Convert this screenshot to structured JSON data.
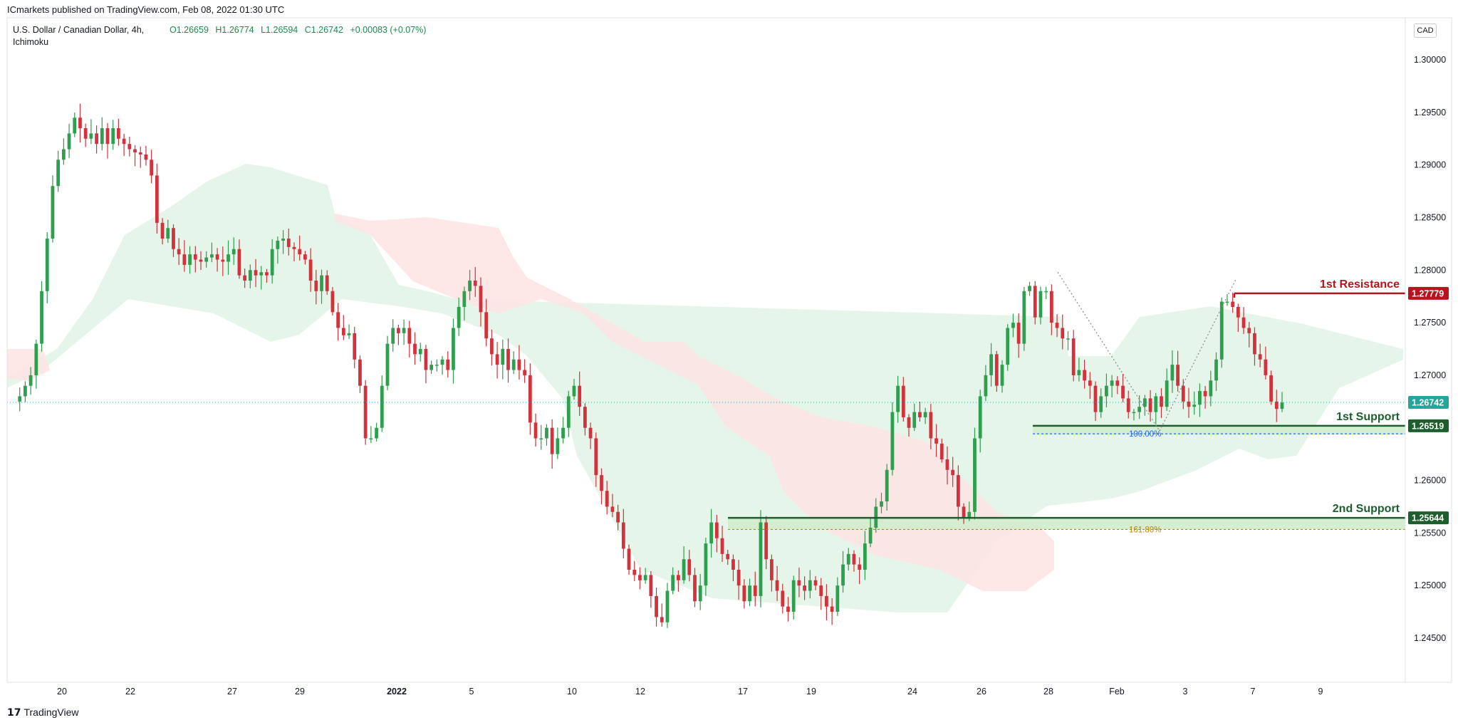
{
  "header": {
    "publisher": "ICmarkets published on TradingView.com, Feb 08, 2022 01:30 UTC",
    "symbol_line1": "U.S. Dollar / Canadian Dollar, 4h,",
    "symbol_line2": "Ichimoku",
    "ohlc": {
      "open": "O1.26659",
      "high": "H1.26774",
      "low": "L1.26594",
      "close": "C1.26742",
      "change": "+0.00083 (+0.07%)"
    },
    "currency": "CAD"
  },
  "footer": {
    "brand": "TradingView",
    "logo_icon": "tradingview-logo-icon"
  },
  "colors": {
    "up": "#26a69a",
    "up_candle": "#2e9e4f",
    "down_candle": "#d1323c",
    "cloud_bull": "#e2f3e6",
    "cloud_bear": "#fde3e3",
    "resistance": "#b7141e",
    "support": "#1e5e2e",
    "support_zone": "#cfeccc",
    "fib_100": "#2962ff",
    "fib_161": "#b8860b",
    "last_price": "#26a69a"
  },
  "chart_data": {
    "type": "candlestick",
    "symbol": "USDCAD",
    "timeframe": "4h",
    "indicator": "Ichimoku",
    "y_axis": {
      "ylim": [
        1.241,
        1.304
      ],
      "ticks": [
        "1.30000",
        "1.29500",
        "1.29000",
        "1.28500",
        "1.28000",
        "1.27500",
        "1.27000",
        "1.26500",
        "1.26000",
        "1.25500",
        "1.25000",
        "1.24500"
      ],
      "tick_values": [
        1.3,
        1.295,
        1.29,
        1.285,
        1.28,
        1.275,
        1.27,
        1.265,
        1.26,
        1.255,
        1.25,
        1.245
      ]
    },
    "x_axis": {
      "ticks": [
        "20",
        "22",
        "27",
        "29",
        "2022",
        "5",
        "10",
        "12",
        "17",
        "19",
        "24",
        "26",
        "28",
        "Feb",
        "3",
        "7",
        "9"
      ],
      "bold_ticks": [
        "2022"
      ]
    },
    "price_labels": [
      {
        "value": "1.27779",
        "kind": "resistance"
      },
      {
        "value": "1.26742",
        "kind": "last"
      },
      {
        "value": "1.26519",
        "kind": "support"
      },
      {
        "value": "1.25644",
        "kind": "support2"
      }
    ],
    "levels": [
      {
        "name": "1st Resistance",
        "price": 1.27779
      },
      {
        "name": "1st Support",
        "price": 1.26519
      },
      {
        "name": "2nd Support",
        "price": 1.25644
      }
    ],
    "fibonacci": [
      {
        "label": "100.00%",
        "price": 1.26443
      },
      {
        "label": "161.80%",
        "price": 1.25533
      }
    ],
    "last_price": 1.26742,
    "price_path": [
      1.2675,
      1.268,
      1.269,
      1.27,
      1.273,
      1.278,
      1.283,
      1.288,
      1.2905,
      1.2915,
      1.293,
      1.2945,
      1.2935,
      1.2925,
      1.293,
      1.292,
      1.2935,
      1.292,
      1.2935,
      1.2925,
      1.292,
      1.2915,
      1.2912,
      1.291,
      1.2905,
      1.289,
      1.2845,
      1.283,
      1.284,
      1.282,
      1.2815,
      1.2805,
      1.2815,
      1.281,
      1.2808,
      1.2812,
      1.2815,
      1.281,
      1.2808,
      1.2815,
      1.282,
      1.2795,
      1.279,
      1.28,
      1.2795,
      1.2798,
      1.2795,
      1.282,
      1.2828,
      1.283,
      1.2822,
      1.282,
      1.2815,
      1.281,
      1.279,
      1.278,
      1.2795,
      1.278,
      1.276,
      1.2745,
      1.2738,
      1.274,
      1.2715,
      1.269,
      1.264,
      1.264,
      1.265,
      1.269,
      1.273,
      1.2745,
      1.274,
      1.2745,
      1.273,
      1.272,
      1.2725,
      1.2705,
      1.271,
      1.271,
      1.2715,
      1.2705,
      1.2745,
      1.2765,
      1.278,
      1.279,
      1.2785,
      1.276,
      1.2735,
      1.272,
      1.271,
      1.2725,
      1.2705,
      1.2715,
      1.2705,
      1.27,
      1.2655,
      1.264,
      1.264,
      1.265,
      1.2625,
      1.264,
      1.265,
      1.268,
      1.269,
      1.267,
      1.265,
      1.264,
      1.2605,
      1.259,
      1.2575,
      1.257,
      1.256,
      1.2535,
      1.2515,
      1.251,
      1.2505,
      1.251,
      1.249,
      1.247,
      1.2465,
      1.2495,
      1.251,
      1.2505,
      1.2525,
      1.251,
      1.2485,
      1.25,
      1.254,
      1.256,
      1.2545,
      1.253,
      1.2525,
      1.2515,
      1.25,
      1.2485,
      1.25,
      1.249,
      1.256,
      1.2525,
      1.2505,
      1.2495,
      1.248,
      1.2475,
      1.2505,
      1.25,
      1.2495,
      1.2505,
      1.25,
      1.249,
      1.248,
      1.2475,
      1.25,
      1.252,
      1.253,
      1.252,
      1.2515,
      1.254,
      1.2555,
      1.2575,
      1.258,
      1.261,
      1.2665,
      1.269,
      1.266,
      1.265,
      1.2665,
      1.266,
      1.2665,
      1.264,
      1.2635,
      1.262,
      1.261,
      1.2605,
      1.2575,
      1.2565,
      1.257,
      1.264,
      1.268,
      1.27,
      1.272,
      1.269,
      1.271,
      1.2745,
      1.275,
      1.273,
      1.278,
      1.2785,
      1.2755,
      1.278,
      1.278,
      1.275,
      1.2745,
      1.2735,
      1.2735,
      1.27,
      1.2705,
      1.2695,
      1.269,
      1.2665,
      1.268,
      1.269,
      1.2695,
      1.269,
      1.2678,
      1.2665,
      1.2665,
      1.267,
      1.2678,
      1.2665,
      1.268,
      1.267,
      1.2695,
      1.271,
      1.269,
      1.2675,
      1.267,
      1.2672,
      1.2685,
      1.268,
      1.2695,
      1.2715,
      1.277,
      1.277,
      1.2765,
      1.2755,
      1.2745,
      1.274,
      1.272,
      1.2715,
      1.27,
      1.2675,
      1.2668,
      1.2674
    ]
  }
}
